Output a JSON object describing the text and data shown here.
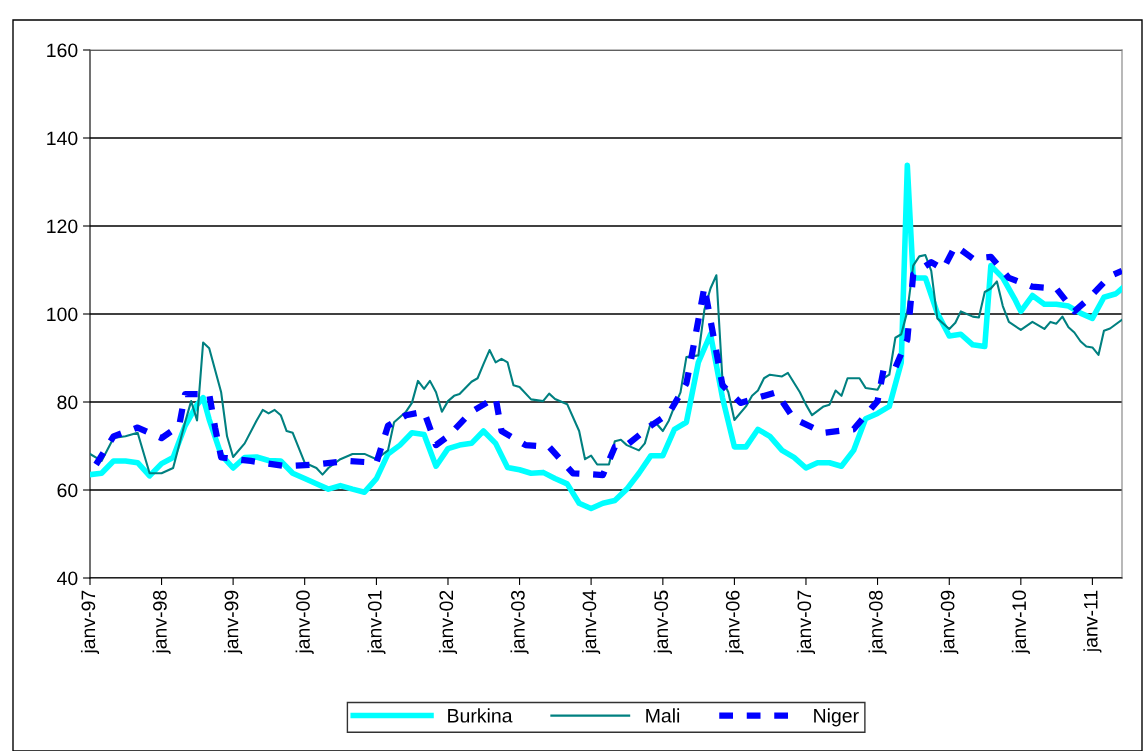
{
  "chart_data": {
    "type": "line",
    "xlim": [
      "1997-01",
      "2011-06"
    ],
    "xticks": [
      {
        "value": "1997-01",
        "label": "janv-97"
      },
      {
        "value": "1998-01",
        "label": "janv-98"
      },
      {
        "value": "1999-01",
        "label": "janv-99"
      },
      {
        "value": "2000-01",
        "label": "janv-00"
      },
      {
        "value": "2001-01",
        "label": "janv-01"
      },
      {
        "value": "2002-01",
        "label": "janv-02"
      },
      {
        "value": "2003-01",
        "label": "janv-03"
      },
      {
        "value": "2004-01",
        "label": "janv-04"
      },
      {
        "value": "2005-01",
        "label": "janv-05"
      },
      {
        "value": "2006-01",
        "label": "janv-06"
      },
      {
        "value": "2007-01",
        "label": "janv-07"
      },
      {
        "value": "2008-01",
        "label": "janv-08"
      },
      {
        "value": "2009-01",
        "label": "janv-09"
      },
      {
        "value": "2010-01",
        "label": "janv-10"
      },
      {
        "value": "2011-01",
        "label": "janv-11"
      }
    ],
    "ylim": [
      40,
      160
    ],
    "yticks": [
      40,
      60,
      80,
      100,
      120,
      140,
      160
    ],
    "grid": "y",
    "legend": "bottom",
    "marker": "none",
    "series": [
      {
        "name": "Burkina",
        "color": "#00ffff",
        "line_style": "solid",
        "x": [
          "1997-01",
          "1997-03",
          "1997-05",
          "1997-07",
          "1997-09",
          "1997-11",
          "1998-01",
          "1998-03",
          "1998-05",
          "1998-07",
          "1998-08",
          "1998-09",
          "1998-11",
          "1999-01",
          "1999-03",
          "1999-05",
          "1999-07",
          "1999-09",
          "1999-11",
          "2000-01",
          "2000-03",
          "2000-05",
          "2000-07",
          "2000-09",
          "2000-11",
          "2001-01",
          "2001-03",
          "2001-05",
          "2001-07",
          "2001-09",
          "2001-11",
          "2002-01",
          "2002-03",
          "2002-05",
          "2002-07",
          "2002-09",
          "2002-11",
          "2003-01",
          "2003-03",
          "2003-05",
          "2003-07",
          "2003-09",
          "2003-11",
          "2004-01",
          "2004-03",
          "2004-05",
          "2004-07",
          "2004-09",
          "2004-11",
          "2005-01",
          "2005-03",
          "2005-05",
          "2005-07",
          "2005-09",
          "2005-11",
          "2006-01",
          "2006-03",
          "2006-05",
          "2006-07",
          "2006-09",
          "2006-11",
          "2007-01",
          "2007-03",
          "2007-05",
          "2007-07",
          "2007-09",
          "2007-11",
          "2008-01",
          "2008-03",
          "2008-05",
          "2008-06",
          "2008-07",
          "2008-09",
          "2008-11",
          "2009-01",
          "2009-03",
          "2009-05",
          "2009-07",
          "2009-08",
          "2009-10",
          "2009-12",
          "2010-01",
          "2010-03",
          "2010-05",
          "2010-07",
          "2010-09",
          "2010-11",
          "2011-01",
          "2011-03",
          "2011-05",
          "2011-06"
        ],
        "values": [
          63.5,
          63.8,
          66.6,
          66.6,
          66.2,
          63.2,
          66,
          67.4,
          74.6,
          79.4,
          81,
          76,
          68,
          65,
          67.4,
          67.5,
          66.7,
          66.6,
          63.8,
          62.6,
          61.4,
          60.2,
          61,
          60.2,
          59.5,
          62.6,
          68.2,
          70.2,
          73,
          72.6,
          65.4,
          69.4,
          70.2,
          70.6,
          73.4,
          70.6,
          65.1,
          64.6,
          63.8,
          64,
          62.6,
          61.4,
          57,
          55.8,
          57,
          57.6,
          60.2,
          63.8,
          67.8,
          67.8,
          73.8,
          75.4,
          89,
          95.4,
          81,
          69.8,
          69.8,
          73.8,
          72.2,
          69,
          67.4,
          65,
          66.2,
          66.2,
          65.4,
          69,
          76.2,
          77.4,
          79,
          89,
          133.8,
          108.2,
          108.2,
          100.2,
          95,
          95.4,
          93,
          92.6,
          111,
          108.2,
          103.4,
          100.6,
          104.2,
          102.2,
          102.2,
          101.8,
          100.2,
          99,
          103.8,
          104.6,
          105.8
        ]
      },
      {
        "name": "Mali",
        "color": "#008080",
        "line_style": "solid",
        "x": [
          "1997-01",
          "1997-03",
          "1997-05",
          "1997-07",
          "1997-09",
          "1997-11",
          "1998-01",
          "1998-03",
          "1998-05",
          "1998-06",
          "1998-07",
          "1998-08",
          "1998-09",
          "1998-11",
          "1998-12",
          "1999-01",
          "1999-03",
          "1999-05",
          "1999-06",
          "1999-07",
          "1999-08",
          "1999-09",
          "1999-10",
          "1999-11",
          "2000-01",
          "2000-03",
          "2000-04",
          "2000-05",
          "2000-07",
          "2000-09",
          "2000-11",
          "2001-01",
          "2001-03",
          "2001-04",
          "2001-06",
          "2001-07",
          "2001-08",
          "2001-09",
          "2001-10",
          "2001-11",
          "2001-12",
          "2002-01",
          "2002-02",
          "2002-03",
          "2002-05",
          "2002-06",
          "2002-07",
          "2002-08",
          "2002-09",
          "2002-10",
          "2002-11",
          "2002-12",
          "2003-01",
          "2003-03",
          "2003-05",
          "2003-06",
          "2003-07",
          "2003-09",
          "2003-11",
          "2003-12",
          "2004-01",
          "2004-02",
          "2004-04",
          "2004-05",
          "2004-06",
          "2004-07",
          "2004-09",
          "2004-10",
          "2004-11",
          "2004-12",
          "2005-01",
          "2005-02",
          "2005-03",
          "2005-04",
          "2005-05",
          "2005-07",
          "2005-08",
          "2005-09",
          "2005-10",
          "2005-11",
          "2005-12",
          "2006-01",
          "2006-03",
          "2006-04",
          "2006-05",
          "2006-06",
          "2006-07",
          "2006-09",
          "2006-10",
          "2006-12",
          "2007-01",
          "2007-02",
          "2007-04",
          "2007-05",
          "2007-06",
          "2007-07",
          "2007-08",
          "2007-10",
          "2007-11",
          "2008-01",
          "2008-02",
          "2008-03",
          "2008-04",
          "2008-05",
          "2008-06",
          "2008-07",
          "2008-08",
          "2008-09",
          "2008-10",
          "2008-11",
          "2009-01",
          "2009-02",
          "2009-03",
          "2009-05",
          "2009-06",
          "2009-07",
          "2009-08",
          "2009-09",
          "2009-10",
          "2009-11",
          "2010-01",
          "2010-03",
          "2010-05",
          "2010-06",
          "2010-07",
          "2010-08",
          "2010-09",
          "2010-10",
          "2010-11",
          "2010-12",
          "2011-01",
          "2011-02",
          "2011-03",
          "2011-04",
          "2011-06"
        ],
        "values": [
          68.2,
          66.6,
          71.8,
          72.2,
          73,
          63.8,
          63.8,
          65,
          75.4,
          80.2,
          75.8,
          93.5,
          92.2,
          82.2,
          72.2,
          67.5,
          70.6,
          75.8,
          78.2,
          77.4,
          78.2,
          77,
          73.4,
          73,
          66.2,
          65,
          63.5,
          65,
          67,
          68.2,
          68.2,
          67,
          69,
          75.4,
          77.8,
          79.8,
          84.8,
          83,
          84.8,
          82.2,
          77.8,
          80.2,
          81.4,
          81.8,
          84.6,
          85.4,
          88.6,
          91.8,
          89,
          89.8,
          89,
          83.8,
          83.4,
          80.6,
          80.2,
          81.9,
          80.7,
          79.5,
          73.4,
          67,
          67.8,
          65.8,
          65.8,
          71.1,
          71.4,
          70.2,
          69,
          70.6,
          75.4,
          75,
          73.4,
          75.8,
          79,
          82.2,
          90.2,
          90.6,
          101,
          105.8,
          108.8,
          85,
          82.2,
          75.9,
          79,
          81.4,
          82.6,
          85.4,
          86.2,
          85.8,
          86.6,
          82.2,
          79.4,
          77,
          79,
          79.4,
          82.6,
          81.4,
          85.4,
          85.4,
          83.2,
          82.8,
          85.4,
          86.2,
          94.6,
          95.4,
          100.6,
          111,
          113.1,
          113.4,
          109.8,
          99,
          96.6,
          98,
          100.6,
          99.4,
          99.2,
          105,
          105.8,
          107.4,
          101.8,
          98.2,
          96.4,
          98.2,
          96.6,
          98.2,
          97.8,
          99.4,
          97,
          95.8,
          93.8,
          92.6,
          92.4,
          90.7,
          96.2,
          96.7,
          98.7
        ]
      },
      {
        "name": "Niger",
        "color": "#0000ff",
        "line_style": "dashed",
        "x": [
          "1997-02",
          "1997-05",
          "1997-09",
          "1998-01",
          "1998-04",
          "1998-05",
          "1998-09",
          "1998-10",
          "1998-11",
          "1999-04",
          "1999-10",
          "2000-03",
          "2000-08",
          "2001-01",
          "2001-03",
          "2001-06",
          "2001-09",
          "2001-11",
          "2002-01",
          "2002-05",
          "2002-09",
          "2002-10",
          "2003-02",
          "2003-06",
          "2003-10",
          "2004-03",
          "2004-05",
          "2004-07",
          "2004-11",
          "2005-02",
          "2005-05",
          "2005-06",
          "2005-07",
          "2005-08",
          "2005-09",
          "2005-10",
          "2005-11",
          "2006-02",
          "2006-08",
          "2006-11",
          "2007-04",
          "2007-09",
          "2008-01",
          "2008-02",
          "2008-04",
          "2008-06",
          "2008-07",
          "2008-10",
          "2008-12",
          "2009-02",
          "2009-05",
          "2009-08",
          "2009-11",
          "2010-03",
          "2010-07",
          "2010-10",
          "2010-12",
          "2011-04",
          "2011-06"
        ],
        "values": [
          65.8,
          72.2,
          74.2,
          71.8,
          74.6,
          81.8,
          81.8,
          74.2,
          67.4,
          66.6,
          65.4,
          65.8,
          66.6,
          66.2,
          74.6,
          77,
          77.8,
          70.2,
          72.2,
          77.8,
          81,
          73.4,
          70.2,
          69.8,
          63.8,
          63.4,
          69.8,
          70.2,
          74.6,
          77.4,
          84.2,
          91.4,
          98.6,
          106.2,
          98.6,
          91.4,
          83.8,
          79.8,
          82.2,
          76.2,
          73,
          73.8,
          80.2,
          87.4,
          87.8,
          94.2,
          109,
          111.8,
          110.2,
          115.5,
          112.6,
          113,
          108.2,
          106.2,
          105.8,
          100.6,
          103,
          108.6,
          109.8
        ]
      }
    ]
  }
}
